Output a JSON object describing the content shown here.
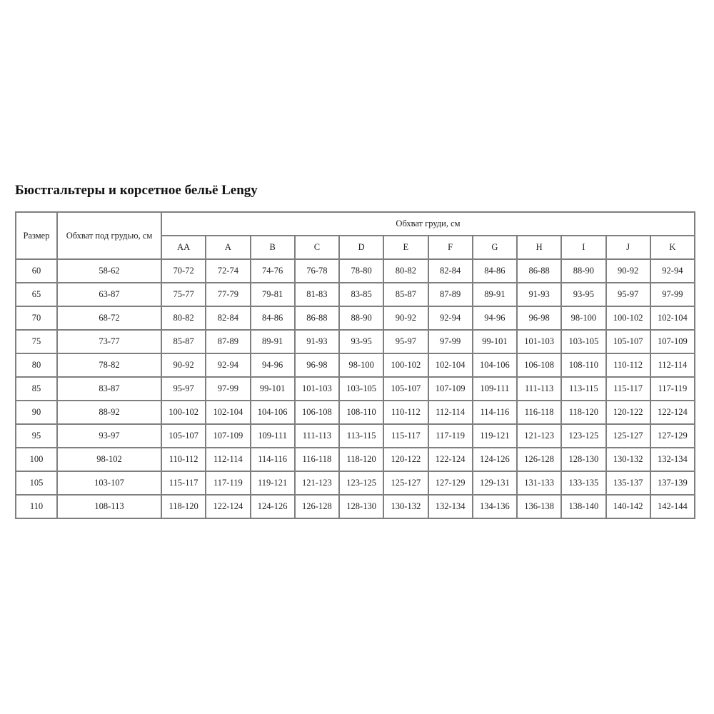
{
  "title": "Бюстгальтеры и корсетное бельё Lengy",
  "table": {
    "col_size": "Размер",
    "col_underbust": "Обхват под грудью, см",
    "col_bust_group": "Обхват груди, см",
    "cups": [
      "AA",
      "A",
      "B",
      "C",
      "D",
      "E",
      "F",
      "G",
      "H",
      "I",
      "J",
      "K"
    ],
    "rows": [
      {
        "size": "60",
        "underbust": "58-62",
        "values": [
          "70-72",
          "72-74",
          "74-76",
          "76-78",
          "78-80",
          "80-82",
          "82-84",
          "84-86",
          "86-88",
          "88-90",
          "90-92",
          "92-94"
        ]
      },
      {
        "size": "65",
        "underbust": "63-87",
        "values": [
          "75-77",
          "77-79",
          "79-81",
          "81-83",
          "83-85",
          "85-87",
          "87-89",
          "89-91",
          "91-93",
          "93-95",
          "95-97",
          "97-99"
        ]
      },
      {
        "size": "70",
        "underbust": "68-72",
        "values": [
          "80-82",
          "82-84",
          "84-86",
          "86-88",
          "88-90",
          "90-92",
          "92-94",
          "94-96",
          "96-98",
          "98-100",
          "100-102",
          "102-104"
        ]
      },
      {
        "size": "75",
        "underbust": "73-77",
        "values": [
          "85-87",
          "87-89",
          "89-91",
          "91-93",
          "93-95",
          "95-97",
          "97-99",
          "99-101",
          "101-103",
          "103-105",
          "105-107",
          "107-109"
        ]
      },
      {
        "size": "80",
        "underbust": "78-82",
        "values": [
          "90-92",
          "92-94",
          "94-96",
          "96-98",
          "98-100",
          "100-102",
          "102-104",
          "104-106",
          "106-108",
          "108-110",
          "110-112",
          "112-114"
        ]
      },
      {
        "size": "85",
        "underbust": "83-87",
        "values": [
          "95-97",
          "97-99",
          "99-101",
          "101-103",
          "103-105",
          "105-107",
          "107-109",
          "109-111",
          "111-113",
          "113-115",
          "115-117",
          "117-119"
        ]
      },
      {
        "size": "90",
        "underbust": "88-92",
        "values": [
          "100-102",
          "102-104",
          "104-106",
          "106-108",
          "108-110",
          "110-112",
          "112-114",
          "114-116",
          "116-118",
          "118-120",
          "120-122",
          "122-124"
        ]
      },
      {
        "size": "95",
        "underbust": "93-97",
        "values": [
          "105-107",
          "107-109",
          "109-111",
          "111-113",
          "113-115",
          "115-117",
          "117-119",
          "119-121",
          "121-123",
          "123-125",
          "125-127",
          "127-129"
        ]
      },
      {
        "size": "100",
        "underbust": "98-102",
        "values": [
          "110-112",
          "112-114",
          "114-116",
          "116-118",
          "118-120",
          "120-122",
          "122-124",
          "124-126",
          "126-128",
          "128-130",
          "130-132",
          "132-134"
        ]
      },
      {
        "size": "105",
        "underbust": "103-107",
        "values": [
          "115-117",
          "117-119",
          "119-121",
          "121-123",
          "123-125",
          "125-127",
          "127-129",
          "129-131",
          "131-133",
          "133-135",
          "135-137",
          "137-139"
        ]
      },
      {
        "size": "110",
        "underbust": "108-113",
        "values": [
          "118-120",
          "122-124",
          "124-126",
          "126-128",
          "128-130",
          "130-132",
          "132-134",
          "134-136",
          "136-138",
          "138-140",
          "140-142",
          "142-144"
        ]
      }
    ]
  }
}
